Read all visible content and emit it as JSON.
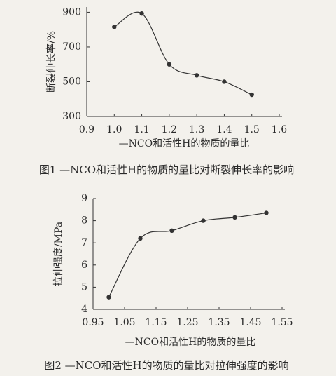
{
  "chart_data": [
    {
      "type": "line",
      "title": "图1 —NCO和活性H的物质的量比对断裂伸长率的影响",
      "xlabel": "—NCO和活性H的物质的量比",
      "ylabel": "断裂伸长率/%",
      "x": [
        1.0,
        1.1,
        1.2,
        1.3,
        1.4,
        1.5
      ],
      "values": [
        815,
        893,
        600,
        537,
        500,
        425
      ],
      "color": "#333333",
      "xlim": [
        0.9,
        1.6
      ],
      "xticks": [
        0.9,
        {
          "value": 1.0,
          "label": "1.0"
        },
        1.1,
        1.2,
        1.3,
        1.4,
        1.5,
        1.6
      ],
      "ylim": [
        300,
        930
      ],
      "yticks": [
        300,
        500,
        700,
        900
      ]
    },
    {
      "type": "line",
      "title": "图2 —NCO和活性H的物质的量比对拉伸强度的影响",
      "xlabel": "—NCO和活性H的物质的量比",
      "ylabel": "拉伸强度/MPa",
      "x": [
        1.0,
        1.1,
        1.2,
        1.3,
        1.4,
        1.5
      ],
      "values": [
        4.55,
        7.2,
        7.55,
        8.0,
        8.15,
        8.35
      ],
      "color": "#333333",
      "xlim": [
        0.95,
        1.55
      ],
      "xticks": [
        0.95,
        1.05,
        1.15,
        1.25,
        1.35,
        1.45,
        1.55
      ],
      "ylim": [
        4,
        9
      ],
      "yticks": [
        4,
        5,
        6,
        7,
        8,
        9
      ]
    }
  ]
}
